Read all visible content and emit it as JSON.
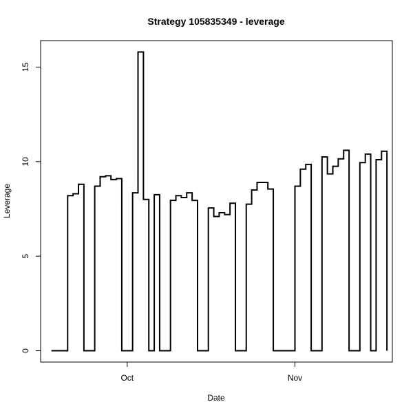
{
  "chart_data": {
    "type": "line",
    "step": true,
    "title": "Strategy 105835349 - leverage",
    "xlabel": "Date",
    "ylabel": "Leverage",
    "xlim": [
      "2019-09-15",
      "2019-11-19"
    ],
    "ylim": [
      -0.6,
      16.4
    ],
    "x_ticks": [
      {
        "date": "2019-10-01",
        "label": "Oct"
      },
      {
        "date": "2019-11-01",
        "label": "Nov"
      }
    ],
    "y_ticks": [
      0,
      5,
      10,
      15
    ],
    "grid": false,
    "series": [
      {
        "line_color": "#000000",
        "x": [
          "2019-09-17",
          "2019-09-19",
          "2019-09-20",
          "2019-09-21",
          "2019-09-22",
          "2019-09-23",
          "2019-09-24",
          "2019-09-25",
          "2019-09-26",
          "2019-09-27",
          "2019-09-28",
          "2019-09-29",
          "2019-09-30",
          "2019-10-01",
          "2019-10-02",
          "2019-10-03",
          "2019-10-04",
          "2019-10-05",
          "2019-10-06",
          "2019-10-07",
          "2019-10-08",
          "2019-10-09",
          "2019-10-10",
          "2019-10-11",
          "2019-10-12",
          "2019-10-13",
          "2019-10-14",
          "2019-10-15",
          "2019-10-16",
          "2019-10-17",
          "2019-10-18",
          "2019-10-19",
          "2019-10-20",
          "2019-10-21",
          "2019-10-22",
          "2019-10-23",
          "2019-10-24",
          "2019-10-25",
          "2019-10-26",
          "2019-10-27",
          "2019-10-28",
          "2019-10-29",
          "2019-10-30",
          "2019-10-31",
          "2019-11-01",
          "2019-11-02",
          "2019-11-03",
          "2019-11-04",
          "2019-11-05",
          "2019-11-06",
          "2019-11-07",
          "2019-11-08",
          "2019-11-09",
          "2019-11-10",
          "2019-11-11",
          "2019-11-12",
          "2019-11-13",
          "2019-11-14",
          "2019-11-15",
          "2019-11-16",
          "2019-11-17",
          "2019-11-18"
        ],
        "values": [
          0,
          0,
          8.2,
          8.3,
          8.8,
          0,
          0,
          8.7,
          9.2,
          9.25,
          9.05,
          9.1,
          0,
          0,
          8.35,
          15.8,
          8.0,
          0,
          8.25,
          0,
          0,
          7.95,
          8.2,
          8.1,
          8.35,
          7.95,
          0,
          0,
          7.55,
          7.1,
          7.3,
          7.2,
          7.8,
          0,
          0,
          7.75,
          8.5,
          8.9,
          8.9,
          8.55,
          0,
          0,
          0,
          0,
          8.7,
          9.6,
          9.85,
          0,
          0,
          10.25,
          9.35,
          9.75,
          10.15,
          10.6,
          0,
          0,
          9.95,
          10.4,
          0,
          10.1,
          10.55,
          0
        ]
      }
    ]
  }
}
